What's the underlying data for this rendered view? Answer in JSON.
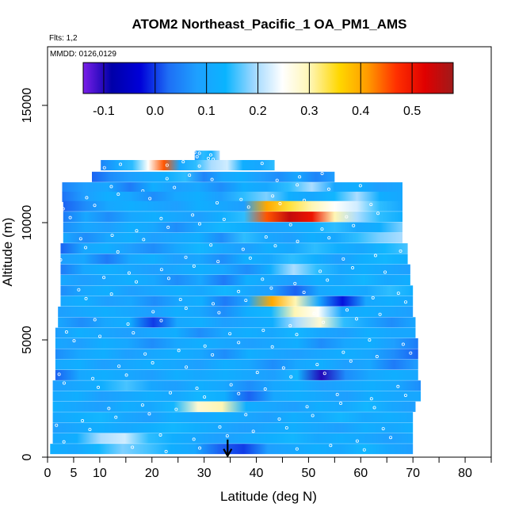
{
  "chart_data": {
    "type": "heatmap",
    "title": "ATOM2 Northeast_Pacific_1 OA_PM1_AMS",
    "flights_label": "Flts: 1,2",
    "dates_label": "MMDD: 0126,0129",
    "xlabel": "Latitude (deg N)",
    "ylabel": "Altitude (m)",
    "xlim": [
      0,
      85
    ],
    "ylim": [
      0,
      17500
    ],
    "xticks": [
      0,
      5,
      10,
      20,
      30,
      40,
      50,
      60,
      70,
      80
    ],
    "xticks_minor": [
      15,
      25,
      35,
      45,
      55,
      65,
      75,
      85
    ],
    "yticks": [
      0,
      5000,
      10000,
      15000
    ],
    "colorbar": {
      "vmin": -0.14,
      "vmax": 0.58,
      "ticks": [
        -0.1,
        0.0,
        0.1,
        0.2,
        0.3,
        0.4,
        0.5
      ],
      "tick_labels": [
        "-0.1",
        "0.0",
        "0.1",
        "0.2",
        "0.3",
        "0.4",
        "0.5"
      ],
      "colors": [
        "#7a1fe8",
        "#0000a8",
        "#0000d8",
        "#1e6ff5",
        "#1ea0ff",
        "#0ab4ff",
        "#9fd8ff",
        "#ffffff",
        "#fff5b0",
        "#ffd700",
        "#ff9a00",
        "#ff3000",
        "#e00000",
        "#a01a1a"
      ]
    },
    "marker": {
      "latitude": 34.5,
      "symbol": "down-arrow"
    },
    "rows": [
      {
        "alt": 12850,
        "x0": 28.2,
        "x1": 33.0,
        "values": [
          0.07,
          0.15,
          0.12,
          0.2
        ]
      },
      {
        "alt": 12450,
        "x0": 10.2,
        "x1": 43.5,
        "values": [
          0.05,
          0.1,
          0.15,
          0.25,
          0.45,
          0.1,
          0.15,
          0.2,
          0.22,
          0.12,
          0.1,
          0.15
        ]
      },
      {
        "alt": 11950,
        "x0": 8.5,
        "x1": 55.0,
        "values": [
          0.02,
          0.06,
          0.08,
          0.1,
          0.12,
          0.15,
          0.05,
          0.1,
          0.12,
          0.08,
          0.06,
          0.1,
          0.05,
          0.08
        ]
      },
      {
        "alt": 11500,
        "x0": 2.8,
        "x1": 68.0,
        "values": [
          0.05,
          0.08,
          0.1,
          0.04,
          0.12,
          0.08,
          0.1,
          0.06,
          0.12,
          0.1,
          0.15,
          0.2,
          0.1,
          0.12,
          0.08,
          0.1
        ]
      },
      {
        "alt": 11100,
        "x0": 2.8,
        "x1": 68.0,
        "values": [
          0.03,
          0.08,
          0.12,
          0.1,
          0.06,
          0.1,
          0.12,
          0.08,
          0.15,
          0.18,
          0.12,
          0.1,
          0.14,
          0.2,
          0.12,
          0.1
        ]
      },
      {
        "alt": 10700,
        "x0": 3.0,
        "x1": 68.0,
        "values": [
          0.02,
          0.06,
          0.1,
          0.12,
          0.1,
          0.08,
          0.12,
          0.1,
          0.08,
          0.4,
          0.34,
          0.3,
          0.25,
          0.22,
          0.15,
          0.1
        ]
      },
      {
        "alt": 10250,
        "x0": 3.0,
        "x1": 68.0,
        "values": [
          0.04,
          0.1,
          0.06,
          0.1,
          0.12,
          0.1,
          0.08,
          0.12,
          0.15,
          0.45,
          0.55,
          0.5,
          0.3,
          0.2,
          0.15,
          0.12
        ]
      },
      {
        "alt": 9800,
        "x0": 3.0,
        "x1": 68.0,
        "values": [
          0.06,
          0.1,
          0.08,
          0.12,
          0.1,
          0.06,
          0.1,
          0.14,
          0.12,
          0.08,
          0.1,
          0.12,
          0.15,
          0.1,
          0.12,
          0.18
        ]
      },
      {
        "alt": 9350,
        "x0": 3.0,
        "x1": 68.0,
        "values": [
          0.1,
          0.06,
          0.1,
          0.12,
          0.08,
          0.1,
          0.12,
          0.06,
          0.15,
          0.1,
          0.08,
          0.12,
          0.1,
          0.15,
          0.18,
          0.2
        ]
      },
      {
        "alt": 8900,
        "x0": 2.5,
        "x1": 69.0,
        "values": [
          0.02,
          0.1,
          0.12,
          0.08,
          0.06,
          0.1,
          0.14,
          0.1,
          0.08,
          0.12,
          0.1,
          0.15,
          0.12,
          0.1,
          0.14,
          0.16
        ]
      },
      {
        "alt": 8450,
        "x0": 2.5,
        "x1": 69.0,
        "values": [
          0.08,
          0.1,
          0.04,
          0.1,
          0.12,
          0.08,
          0.1,
          0.06,
          0.12,
          0.1,
          0.15,
          0.12,
          0.08,
          0.12,
          0.14,
          0.12
        ]
      },
      {
        "alt": 8000,
        "x0": 2.5,
        "x1": 69.5,
        "values": [
          0.04,
          0.1,
          0.12,
          0.1,
          0.08,
          0.1,
          0.12,
          0.1,
          0.06,
          0.12,
          0.2,
          0.15,
          0.1,
          0.12,
          0.1,
          0.08
        ]
      },
      {
        "alt": 7550,
        "x0": 2.5,
        "x1": 69.5,
        "values": [
          0.1,
          0.08,
          0.1,
          0.12,
          0.1,
          0.06,
          0.1,
          0.04,
          0.12,
          0.1,
          0.08,
          0.12,
          0.1,
          0.14,
          0.1,
          0.12
        ]
      },
      {
        "alt": 7100,
        "x0": 2.5,
        "x1": 70.0,
        "values": [
          0.06,
          0.1,
          0.12,
          0.08,
          0.1,
          0.12,
          0.1,
          0.14,
          0.1,
          0.08,
          0.02,
          0.1,
          0.12,
          0.1,
          0.15,
          0.12
        ]
      },
      {
        "alt": 6650,
        "x0": 2.5,
        "x1": 70.0,
        "values": [
          0.1,
          0.12,
          0.08,
          0.1,
          0.06,
          0.1,
          0.12,
          0.04,
          0.1,
          0.4,
          0.3,
          0.1,
          -0.02,
          0.1,
          0.12,
          0.1
        ]
      },
      {
        "alt": 6200,
        "x0": 2.0,
        "x1": 70.0,
        "values": [
          0.08,
          0.1,
          0.12,
          0.1,
          0.08,
          0.12,
          0.1,
          0.06,
          0.12,
          0.14,
          0.3,
          0.25,
          0.1,
          0.12,
          0.1,
          0.08
        ]
      },
      {
        "alt": 5750,
        "x0": 2.0,
        "x1": 70.5,
        "values": [
          0.1,
          0.06,
          0.1,
          0.12,
          0.0,
          0.1,
          0.12,
          0.08,
          0.1,
          0.12,
          0.2,
          0.28,
          0.15,
          0.1,
          0.06,
          0.1
        ]
      },
      {
        "alt": 5300,
        "x0": 1.5,
        "x1": 70.5,
        "values": [
          0.08,
          0.12,
          0.1,
          0.08,
          0.1,
          0.12,
          0.06,
          0.1,
          0.12,
          0.1,
          0.14,
          0.1,
          0.08,
          0.12,
          0.1,
          0.1
        ]
      },
      {
        "alt": 4850,
        "x0": 1.5,
        "x1": 71.0,
        "values": [
          0.1,
          0.08,
          0.12,
          0.1,
          0.06,
          0.1,
          0.12,
          0.1,
          0.08,
          0.1,
          0.12,
          0.06,
          0.1,
          0.12,
          0.08,
          0.04
        ]
      },
      {
        "alt": 4400,
        "x0": 1.5,
        "x1": 71.0,
        "values": [
          0.06,
          0.1,
          0.12,
          0.08,
          0.1,
          0.12,
          0.1,
          0.06,
          0.12,
          0.1,
          0.08,
          0.1,
          0.12,
          0.1,
          0.06,
          0.02
        ]
      },
      {
        "alt": 3950,
        "x0": 1.5,
        "x1": 71.0,
        "values": [
          0.1,
          0.12,
          0.08,
          0.1,
          0.12,
          0.1,
          0.08,
          0.12,
          0.1,
          0.06,
          0.1,
          0.12,
          0.08,
          0.1,
          0.04,
          0.08
        ]
      },
      {
        "alt": 3500,
        "x0": 1.5,
        "x1": 71.0,
        "values": [
          0.02,
          0.1,
          0.12,
          0.1,
          0.08,
          0.12,
          0.1,
          0.12,
          0.1,
          0.08,
          0.14,
          -0.1,
          0.06,
          0.1,
          0.12,
          0.1
        ]
      },
      {
        "alt": 3050,
        "x0": 1.0,
        "x1": 71.5,
        "values": [
          0.08,
          0.1,
          0.12,
          0.16,
          0.1,
          0.08,
          0.12,
          0.1,
          0.06,
          0.1,
          0.12,
          0.08,
          0.1,
          0.12,
          0.1,
          0.06
        ]
      },
      {
        "alt": 2600,
        "x0": 1.0,
        "x1": 71.5,
        "values": [
          0.1,
          0.12,
          0.08,
          0.1,
          0.12,
          0.1,
          0.14,
          0.12,
          0.02,
          0.1,
          0.12,
          0.1,
          0.08,
          0.12,
          0.1,
          0.1
        ]
      },
      {
        "alt": 2150,
        "x0": 1.0,
        "x1": 70.5,
        "values": [
          0.12,
          0.1,
          0.08,
          0.12,
          0.1,
          0.14,
          0.28,
          0.3,
          0.12,
          0.1,
          0.08,
          0.12,
          0.1,
          0.14,
          0.1,
          0.08
        ]
      },
      {
        "alt": 1700,
        "x0": 1.0,
        "x1": 70.0,
        "values": [
          0.1,
          0.12,
          0.14,
          0.1,
          0.08,
          0.12,
          0.1,
          0.12,
          0.1,
          0.08,
          0.12,
          0.1,
          0.14,
          0.1,
          0.12,
          0.1
        ]
      },
      {
        "alt": 1250,
        "x0": 1.0,
        "x1": 70.0,
        "values": [
          0.08,
          0.1,
          0.12,
          0.1,
          0.12,
          0.14,
          0.12,
          0.1,
          0.08,
          0.1,
          0.12,
          0.1,
          0.08,
          0.12,
          0.1,
          0.12
        ]
      },
      {
        "alt": 800,
        "x0": 1.0,
        "x1": 70.0,
        "values": [
          0.1,
          0.12,
          0.2,
          0.22,
          0.15,
          0.12,
          0.1,
          0.08,
          0.1,
          0.12,
          0.14,
          0.1,
          0.12,
          0.1,
          0.08,
          0.1
        ]
      },
      {
        "alt": 350,
        "x0": 0.5,
        "x1": 70.0,
        "values": [
          0.12,
          0.1,
          0.14,
          0.18,
          0.16,
          0.12,
          0.1,
          0.02,
          0.0,
          0.08,
          0.1,
          0.12,
          0.1,
          0.14,
          0.1,
          0.08
        ]
      }
    ]
  }
}
